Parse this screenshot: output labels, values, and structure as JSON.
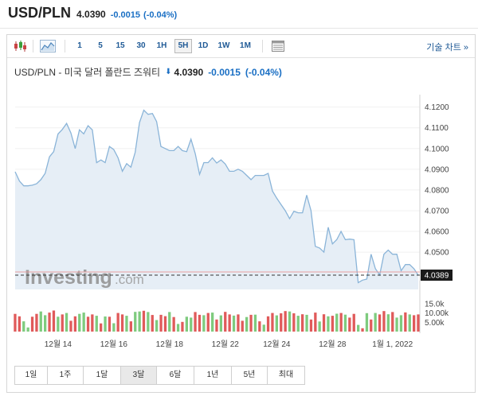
{
  "header": {
    "symbol": "USD/PLN",
    "price": "4.0390",
    "change": "-0.0015",
    "change_pct": "(-0.04%)"
  },
  "toolbar": {
    "candle_icon": "candlestick-icon",
    "area_icon": "area-chart-icon",
    "intervals": [
      "1",
      "5",
      "15",
      "30",
      "1H",
      "5H",
      "1D",
      "1W",
      "1M"
    ],
    "active_interval": "5H",
    "table_icon": "table-icon",
    "full_chart_label": "기술 차트 »"
  },
  "chart_title": {
    "name": "USD/PLN - 미국 달러 폴란드 즈워티",
    "arrow": "⬇",
    "price": "4.0390",
    "change": "-0.0015",
    "change_pct": "(-0.04%)"
  },
  "watermark": {
    "brand": "Investing",
    "suffix": ".com"
  },
  "colors": {
    "line": "#8ab4d8",
    "fill": "#e6eef6",
    "up": "#7ecb7e",
    "down": "#e05a5a",
    "accent": "#1a6fc4"
  },
  "chart_data": {
    "type": "area",
    "ylim": [
      4.032,
      4.126
    ],
    "y_ticks": [
      "4.1200",
      "4.1100",
      "4.1000",
      "4.0900",
      "4.0800",
      "4.0700",
      "4.0600",
      "4.0500"
    ],
    "x_ticks": [
      "12월 14",
      "12월 16",
      "12월 18",
      "12월 22",
      "12월 24",
      "12월 28",
      "1월 1, 2022"
    ],
    "current_price_label": "4.0389",
    "current_price": 4.0389,
    "volume_ticks": [
      "15.0k",
      "10.00k",
      "5.00k"
    ],
    "volume_ylim": [
      0,
      17500
    ],
    "values": [
      4.0888,
      4.0843,
      4.082,
      4.082,
      4.0823,
      4.083,
      4.085,
      4.088,
      4.096,
      4.0985,
      4.107,
      4.1092,
      4.1121,
      4.1075,
      4.1,
      4.109,
      4.1071,
      4.111,
      4.109,
      4.0932,
      4.0945,
      4.0932,
      4.101,
      4.0995,
      4.0955,
      4.089,
      4.0927,
      4.091,
      4.0982,
      4.1125,
      4.1185,
      4.1165,
      4.1169,
      4.113,
      4.101,
      4.1,
      4.099,
      4.099,
      4.101,
      4.099,
      4.0985,
      4.1045,
      4.0975,
      4.0875,
      4.0932,
      4.0932,
      4.0955,
      4.093,
      4.0945,
      4.0925,
      4.089,
      4.089,
      4.09,
      4.089,
      4.087,
      4.085,
      4.087,
      4.087,
      4.087,
      4.088,
      4.0795,
      4.076,
      4.073,
      4.07,
      4.0662,
      4.0697,
      4.069,
      4.069,
      4.0775,
      4.07,
      4.0528,
      4.052,
      4.05,
      4.062,
      4.054,
      4.056,
      4.06,
      4.056,
      4.0563,
      4.056,
      4.0353,
      4.0365,
      4.037,
      4.049,
      4.042,
      4.039,
      4.049,
      4.051,
      4.049,
      4.049,
      4.041,
      4.044,
      4.044,
      4.042,
      4.0389
    ],
    "volumes_k": [
      9.5,
      8.2,
      5.5,
      2.2,
      8.0,
      9.5,
      10.8,
      8.8,
      10.2,
      11.3,
      8.0,
      9.2,
      10.0,
      5.8,
      8.2,
      9.5,
      10.2,
      8.0,
      9.2,
      8.5,
      4.4,
      8.1,
      8.0,
      4.5,
      10.0,
      9.2,
      8.5,
      5.5,
      10.6,
      10.8,
      11.2,
      10.5,
      8.9,
      6.2,
      9.0,
      8.3,
      10.5,
      7.8,
      4.1,
      5.2,
      8.0,
      7.5,
      10.5,
      9.0,
      8.8,
      10.0,
      10.2,
      6.5,
      8.7,
      10.6,
      9.2,
      8.6,
      9.2,
      5.8,
      7.8,
      9.0,
      9.1,
      5.5,
      3.7,
      8.2,
      10.0,
      8.7,
      9.8,
      11.0,
      10.8,
      9.8,
      8.5,
      9.3,
      9.0,
      6.5,
      10.2,
      5.4,
      9.3,
      8.2,
      8.5,
      9.6,
      10.0,
      9.1,
      7.5,
      9.5,
      3.6,
      1.8,
      9.9,
      6.5,
      10.0,
      9.2,
      11.0,
      9.3,
      10.5,
      7.5,
      8.8,
      10.3,
      9.2,
      8.8,
      9.2
    ],
    "volume_up": [
      false,
      false,
      true,
      true,
      false,
      false,
      true,
      true,
      false,
      false,
      true,
      false,
      true,
      false,
      false,
      true,
      true,
      false,
      false,
      true,
      false,
      true,
      false,
      true,
      false,
      false,
      true,
      false,
      true,
      true,
      false,
      true,
      false,
      true,
      false,
      false,
      true,
      false,
      true,
      false,
      true,
      true,
      false,
      false,
      true,
      false,
      true,
      false,
      true,
      false,
      false,
      true,
      false,
      false,
      true,
      false,
      true,
      false,
      true,
      false,
      false,
      true,
      false,
      false,
      true,
      false,
      true,
      false,
      true,
      false,
      false,
      true,
      false,
      true,
      false,
      true,
      false,
      true,
      false,
      false,
      true,
      false,
      true,
      false,
      true,
      false,
      false,
      true,
      false,
      true,
      true,
      false,
      true,
      false,
      false
    ]
  },
  "range_buttons": [
    "1일",
    "1주",
    "1달",
    "3달",
    "6달",
    "1년",
    "5년",
    "최대"
  ],
  "active_range": "3달"
}
